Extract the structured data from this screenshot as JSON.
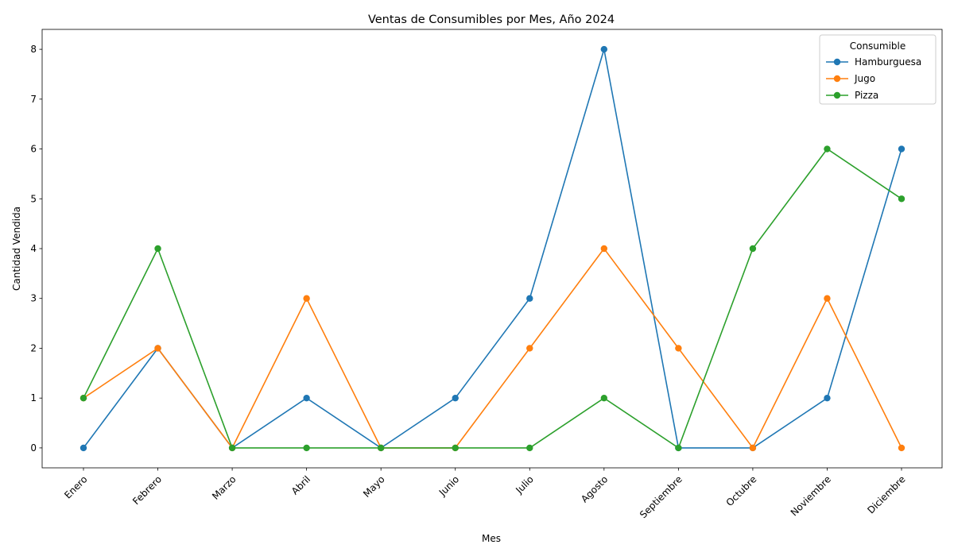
{
  "chart_data": {
    "type": "line",
    "title": "Ventas de Consumibles por Mes, Año 2024",
    "xlabel": "Mes",
    "ylabel": "Cantidad Vendida",
    "categories": [
      "Enero",
      "Febrero",
      "Marzo",
      "Abril",
      "Mayo",
      "Junio",
      "Julio",
      "Agosto",
      "Septiembre",
      "Octubre",
      "Noviembre",
      "Diciembre"
    ],
    "ylim": [
      -0.4,
      8.4
    ],
    "yticks": [
      0,
      1,
      2,
      3,
      4,
      5,
      6,
      7,
      8
    ],
    "grid": false,
    "legend": {
      "title": "Consumible",
      "placement": "top-right"
    },
    "series": [
      {
        "name": "Hamburguesa",
        "color": "#1f77b4",
        "values": [
          0,
          2,
          0,
          1,
          0,
          1,
          3,
          8,
          0,
          0,
          1,
          6
        ]
      },
      {
        "name": "Jugo",
        "color": "#ff7f0e",
        "values": [
          1,
          2,
          0,
          3,
          0,
          0,
          2,
          4,
          2,
          0,
          3,
          0
        ]
      },
      {
        "name": "Pizza",
        "color": "#2ca02c",
        "values": [
          1,
          4,
          0,
          0,
          0,
          0,
          0,
          1,
          0,
          4,
          6,
          5
        ]
      }
    ]
  }
}
